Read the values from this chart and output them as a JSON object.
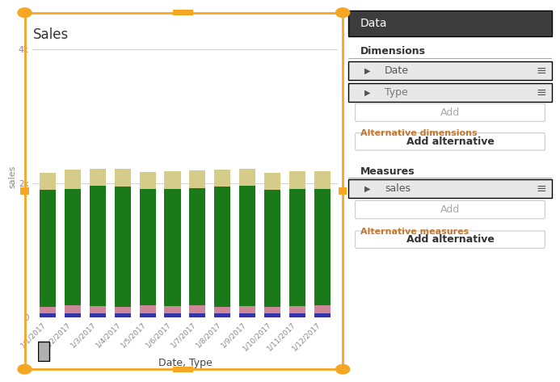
{
  "title": "Sales",
  "xlabel": "Date, Type",
  "ylabel": "sales",
  "dates": [
    "1/1/2017",
    "1/2/2017",
    "1/3/2017",
    "1/4/2017",
    "1/5/2017",
    "1/6/2017",
    "1/7/2017",
    "1/8/2017",
    "1/9/2017",
    "1/10/2017",
    "1/11/2017",
    "1/12/2017"
  ],
  "bar_segments": {
    "blue": [
      50,
      50,
      50,
      50,
      50,
      50,
      50,
      50,
      50,
      50,
      50,
      50
    ],
    "pink": [
      100,
      120,
      110,
      100,
      120,
      110,
      130,
      100,
      110,
      100,
      110,
      120
    ],
    "green": [
      1750,
      1750,
      1800,
      1800,
      1750,
      1750,
      1750,
      1800,
      1800,
      1750,
      1750,
      1750
    ],
    "yellow": [
      250,
      280,
      260,
      270,
      250,
      270,
      260,
      250,
      250,
      260,
      270,
      260
    ]
  },
  "colors": {
    "blue": "#3333aa",
    "pink": "#cc8899",
    "green": "#1a7a1a",
    "yellow": "#d4cc88"
  },
  "yticks": [
    0,
    2000,
    4000
  ],
  "ytick_labels": [
    "0",
    "2k",
    "4k"
  ],
  "ylim": [
    0,
    4200
  ],
  "bg_color": "#ffffff",
  "chart_bg": "#ffffff",
  "grid_color": "#cccccc",
  "panel_header_bg": "#3d3d3d",
  "panel_header_color": "#ffffff",
  "orange_border": "#f5a623",
  "scrollbar_color": "#b0b0b0",
  "scrollbar_bg": "#d0d0d0",
  "row_bg": "#e8e8e8",
  "panel_bg": "#f0f0f0"
}
